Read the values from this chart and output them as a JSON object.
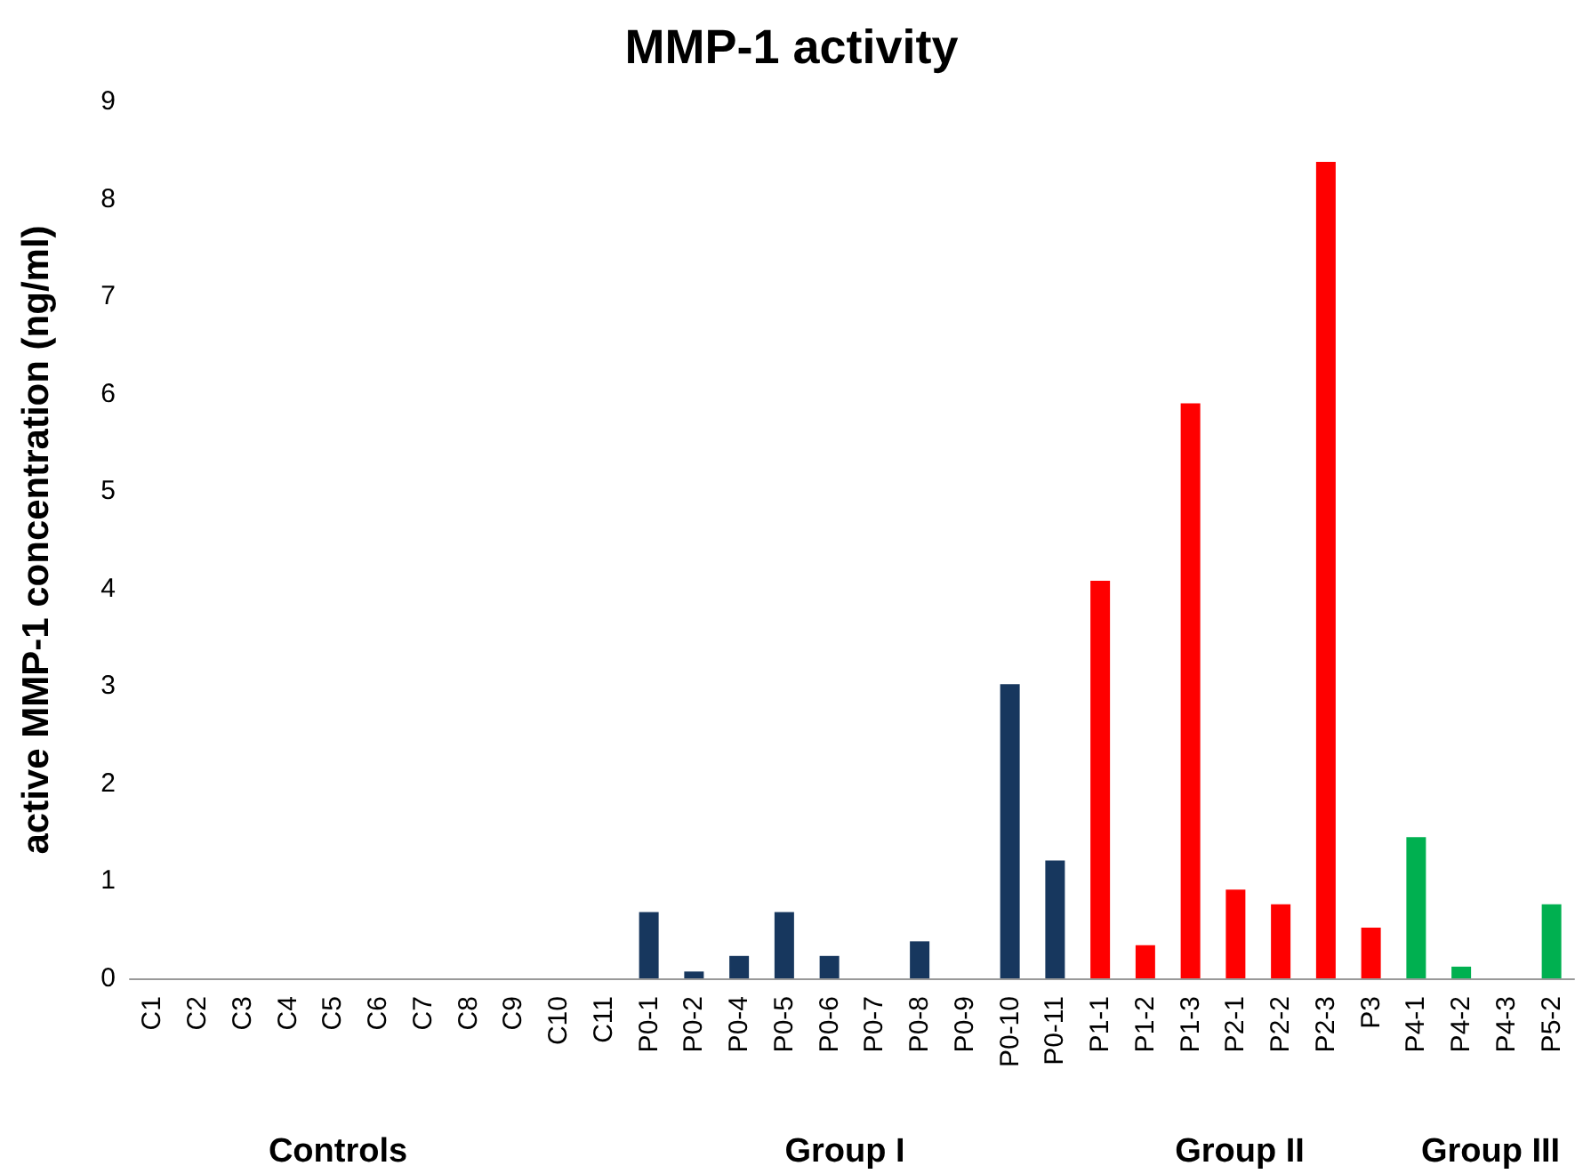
{
  "chart_data": {
    "type": "bar",
    "title": "MMP-1 activity",
    "ylabel": "active MMP-1 concentration (ng/ml)",
    "categories": [
      "C1",
      "C2",
      "C3",
      "C4",
      "C5",
      "C6",
      "C7",
      "C8",
      "C9",
      "C10",
      "C11",
      "P0-1",
      "P0-2",
      "P0-4",
      "P0-5",
      "P0-6",
      "P0-7",
      "P0-8",
      "P0-9",
      "P0-10",
      "P0-11",
      "P1-1",
      "P1-2",
      "P1-3",
      "P2-1",
      "P2-2",
      "P2-3",
      "P3",
      "P4-1",
      "P4-2",
      "P4-3",
      "P5-2"
    ],
    "values": [
      0,
      0,
      0,
      0,
      0,
      0,
      0,
      0,
      0,
      0,
      0,
      0.68,
      0.07,
      0.23,
      0.68,
      0.23,
      0,
      0.38,
      0,
      3.02,
      1.21,
      4.08,
      0.34,
      5.9,
      0.91,
      0.76,
      8.38,
      0.52,
      1.45,
      0.12,
      0,
      0.76
    ],
    "colors": [
      "#17375e",
      "#17375e",
      "#17375e",
      "#17375e",
      "#17375e",
      "#17375e",
      "#17375e",
      "#17375e",
      "#17375e",
      "#17375e",
      "#17375e",
      "#17375e",
      "#17375e",
      "#17375e",
      "#17375e",
      "#17375e",
      "#17375e",
      "#17375e",
      "#17375e",
      "#17375e",
      "#17375e",
      "#ff0000",
      "#ff0000",
      "#ff0000",
      "#ff0000",
      "#ff0000",
      "#ff0000",
      "#ff0000",
      "#00b050",
      "#00b050",
      "#00b050",
      "#00b050"
    ],
    "ylim": [
      0,
      9
    ],
    "yticks": [
      0,
      1,
      2,
      3,
      4,
      5,
      6,
      7,
      8,
      9
    ],
    "grid": false,
    "annotations": [
      "Controls",
      "Group I",
      "Group II",
      "Group III"
    ]
  }
}
